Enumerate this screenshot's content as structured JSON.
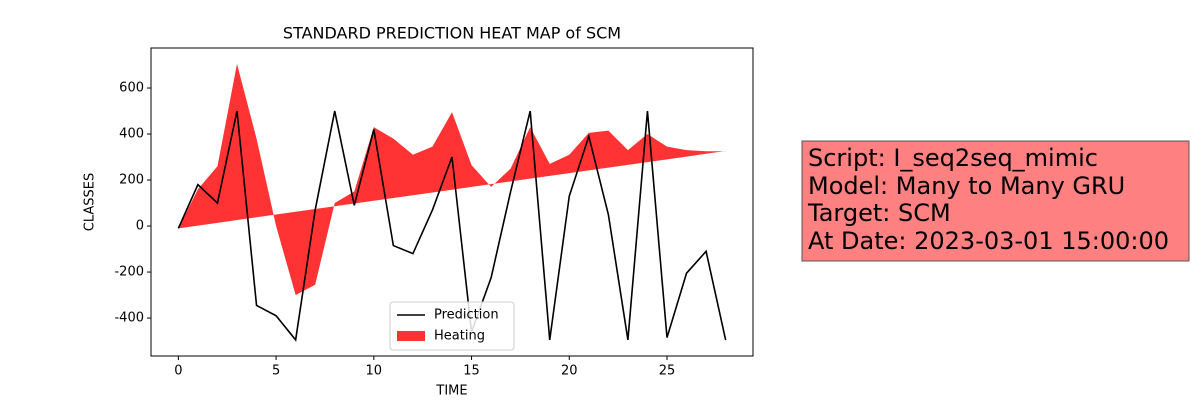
{
  "chart_data": {
    "type": "line_fill",
    "title": "STANDARD PREDICTION HEAT MAP of SCM",
    "xlabel": "TIME",
    "ylabel": "CLASSES",
    "x": [
      0,
      1,
      2,
      3,
      4,
      5,
      6,
      7,
      8,
      9,
      10,
      11,
      12,
      13,
      14,
      15,
      16,
      17,
      18,
      19,
      20,
      21,
      22,
      23,
      24,
      25,
      26,
      27,
      28
    ],
    "series": [
      {
        "name": "Prediction",
        "kind": "line",
        "color": "#000000",
        "values": [
          -10,
          180,
          100,
          500,
          -345,
          -390,
          -495,
          70,
          500,
          90,
          420,
          -85,
          -120,
          70,
          300,
          -460,
          -225,
          150,
          500,
          -495,
          130,
          390,
          50,
          -495,
          500,
          -485,
          -205,
          -110,
          -495
        ]
      },
      {
        "name": "Heating",
        "kind": "fill",
        "color": "#ff0000",
        "alpha": 0.8,
        "values": [
          -10,
          160,
          260,
          705,
          380,
          0,
          -300,
          -255,
          100,
          150,
          430,
          380,
          310,
          345,
          495,
          265,
          170,
          250,
          430,
          270,
          310,
          405,
          415,
          330,
          400,
          345,
          330,
          325,
          325
        ],
        "baseline": [
          -10,
          2,
          14,
          26,
          38,
          50,
          62,
          74,
          86,
          98,
          110,
          122,
          134,
          146,
          158,
          170,
          182,
          194,
          206,
          218,
          230,
          242,
          254,
          266,
          278,
          290,
          302,
          314,
          326
        ]
      }
    ],
    "xlim": [
      -1.4,
      29.4
    ],
    "ylim": [
      -565,
      774
    ],
    "xticks": [
      0,
      5,
      10,
      15,
      20,
      25
    ],
    "yticks": [
      -400,
      -200,
      0,
      200,
      400,
      600
    ],
    "legend": "lower center"
  },
  "info_box": {
    "lines": [
      "Script: I_seq2seq_mimic",
      "Model: Many to Many GRU",
      "Target: SCM",
      "At Date: 2023-03-01 15:00:00"
    ],
    "color": "#ff8080"
  }
}
